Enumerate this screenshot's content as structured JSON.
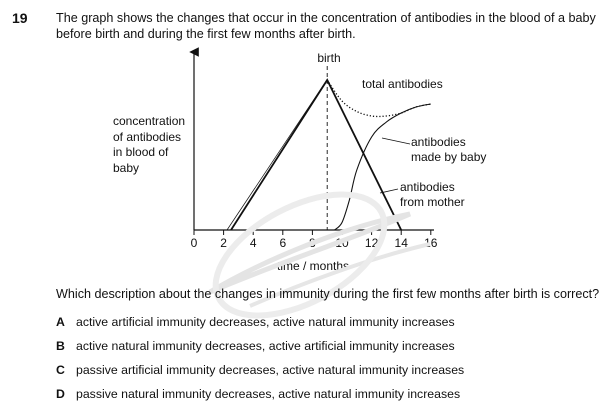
{
  "question": {
    "number": "19",
    "stem_line1": "The graph shows the changes that occur in the concentration of antibodies in the blood of a baby",
    "stem_line2": "before birth and during the first few months after birth.",
    "prompt": "Which description about the changes in immunity during the first few months after birth is correct?"
  },
  "options": [
    {
      "letter": "A",
      "text": "active artificial immunity decreases, active natural immunity increases"
    },
    {
      "letter": "B",
      "text": "active natural immunity decreases, active artificial immunity increases"
    },
    {
      "letter": "C",
      "text": "passive artificial immunity decreases, active natural immunity increases"
    },
    {
      "letter": "D",
      "text": "passive natural immunity decreases, active natural immunity increases"
    }
  ],
  "graph": {
    "y_label_lines": [
      "concentration",
      "of antibodies",
      "in blood of",
      "baby"
    ],
    "x_label": "time / months",
    "birth_label": "birth",
    "curve_labels": {
      "total": "total antibodies",
      "made_line1": "antibodies",
      "made_line2": "made by baby",
      "mother_line1": "antibodies",
      "mother_line2": "from mother"
    }
  },
  "chart_data": {
    "type": "line",
    "xlabel": "time / months",
    "ylabel": "concentration of antibodies in blood of baby",
    "xticks": [
      0,
      2,
      4,
      6,
      8,
      10,
      12,
      14,
      16
    ],
    "xlim": [
      0,
      16
    ],
    "annotation": "birth",
    "birth_x": 9,
    "series": [
      {
        "name": "antibodies from mother",
        "style": "solid",
        "x": [
          2.5,
          9,
          14
        ],
        "y": [
          0,
          100,
          0
        ]
      },
      {
        "name": "antibodies made by baby",
        "style": "solid",
        "x": [
          9.5,
          10,
          10.5,
          11,
          12,
          13,
          14,
          15,
          16
        ],
        "y": [
          0,
          5,
          20,
          40,
          62,
          72,
          78,
          82,
          84
        ]
      },
      {
        "name": "total antibodies",
        "style": "dotted",
        "x": [
          9,
          10,
          11,
          12,
          13,
          14,
          15,
          16
        ],
        "y": [
          100,
          86,
          79,
          76,
          76,
          78,
          82,
          84
        ]
      }
    ]
  }
}
